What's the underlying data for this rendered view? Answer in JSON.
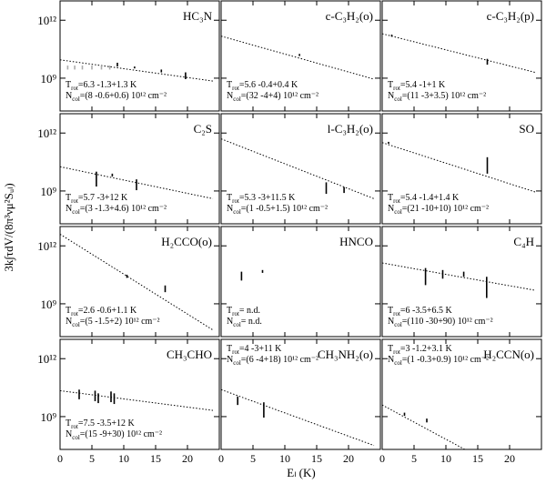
{
  "ylabel": "3k∫τdV/(8π³νμ²Sᵤₗ)",
  "xlabel": "Eₗ (K)",
  "chart_data": [
    {
      "type": "rotation",
      "title": "HC₃N",
      "xlim": [
        0,
        25
      ],
      "ylim": [
        20000000.0,
        10000000000000.0
      ],
      "log_y": true,
      "xticks": [
        0,
        5,
        10,
        15,
        20
      ],
      "yticks": [
        {
          "value": 1000000000.0,
          "label": "10⁹"
        },
        {
          "value": 1000000000000.0,
          "label": "10¹²"
        }
      ],
      "trot": {
        "sym": "T",
        "sub": "rot",
        "text": "=6.3 -1.3+1.3 K"
      },
      "ncol": {
        "sym": "N",
        "sub": "col",
        "text": "=(8 -0.6+0.6) 10¹² cm⁻²"
      },
      "fit": {
        "x": [
          0,
          24
        ],
        "y": [
          8900000000.0,
          710000000.0
        ]
      },
      "bars": {
        "color": "#000000",
        "x": [
          9,
          11.7,
          15.9,
          19.7
        ],
        "lo": [
          4000000000.0,
          3200000000.0,
          2000000000.0,
          890000000.0
        ],
        "hi": [
          6300000000.0,
          4000000000.0,
          2800000000.0,
          2000000000.0
        ]
      },
      "limits": {
        "color": "#aaaaaa",
        "x": [
          1.2,
          2.3,
          3.5,
          5,
          6.5,
          7.8
        ],
        "lo": [
          2800000000.0,
          2800000000.0,
          2800000000.0,
          2800000000.0,
          2800000000.0,
          2800000000.0
        ],
        "hi": [
          4500000000.0,
          4500000000.0,
          4500000000.0,
          4500000000.0,
          4500000000.0,
          4500000000.0
        ]
      }
    },
    {
      "type": "rotation",
      "title": "c-C₃H₂(o)",
      "xlim": [
        0,
        25
      ],
      "ylim": [
        20000000.0,
        10000000000000.0
      ],
      "log_y": true,
      "xticks": [
        0,
        5,
        10,
        15,
        20
      ],
      "yticks": [
        {
          "value": 1000000000.0,
          "label": "10⁹"
        },
        {
          "value": 1000000000000.0,
          "label": "10¹²"
        }
      ],
      "trot": {
        "sym": "T",
        "sub": "rot",
        "text": "=5.6 -0.4+0.4 K"
      },
      "ncol": {
        "sym": "N",
        "sub": "col",
        "text": "=(32 -4+4) 10¹² cm⁻²"
      },
      "fit": {
        "x": [
          0,
          24
        ],
        "y": [
          150000000000.0,
          890000000.0
        ]
      },
      "bars": {
        "color": "#000000",
        "x": [
          12.3
        ],
        "lo": [
          14000000000.0
        ],
        "hi": [
          18000000000.0
        ]
      }
    },
    {
      "type": "rotation",
      "title": "c-C₃H₂(p)",
      "xlim": [
        0,
        25
      ],
      "ylim": [
        20000000.0,
        10000000000000.0
      ],
      "log_y": true,
      "xticks": [
        0,
        5,
        10,
        15,
        20
      ],
      "yticks": [
        {
          "value": 1000000000.0,
          "label": "10⁹"
        },
        {
          "value": 1000000000000.0,
          "label": "10¹²"
        }
      ],
      "trot": {
        "sym": "T",
        "sub": "rot",
        "text": "=5.4 -1+1 K"
      },
      "ncol": {
        "sym": "N",
        "sub": "col",
        "text": "=(11 -3+3.5) 10¹² cm⁻²"
      },
      "fit": {
        "x": [
          0,
          24
        ],
        "y": [
          200000000000.0,
          2000000000.0
        ]
      },
      "bars": {
        "color": "#000000",
        "x": [
          1.5,
          16.5
        ],
        "lo": [
          140000000000.0,
          5000000000.0
        ],
        "hi": [
          180000000000.0,
          10000000000.0
        ]
      }
    },
    {
      "type": "rotation",
      "title": "C₂S",
      "xlim": [
        0,
        25
      ],
      "ylim": [
        20000000.0,
        10000000000000.0
      ],
      "log_y": true,
      "xticks": [
        0,
        5,
        10,
        15,
        20
      ],
      "yticks": [
        {
          "value": 1000000000.0,
          "label": "10⁹"
        },
        {
          "value": 1000000000000.0,
          "label": "10¹²"
        }
      ],
      "trot": {
        "sym": "T",
        "sub": "rot",
        "text": "=5.7 -3+12 K"
      },
      "ncol": {
        "sym": "N",
        "sub": "col",
        "text": "=(3 -1.3+4.6) 10¹² cm⁻²"
      },
      "fit": {
        "x": [
          0,
          24
        ],
        "y": [
          18000000000.0,
          400000000.0
        ]
      },
      "bars": {
        "color": "#000000",
        "x": [
          5.7,
          8.2,
          12
        ],
        "lo": [
          1700000000.0,
          5600000000.0,
          1100000000.0
        ],
        "hi": [
          10000000000.0,
          7900000000.0,
          4000000000.0
        ]
      }
    },
    {
      "type": "rotation",
      "title": "l-C₃H₂(o)",
      "xlim": [
        0,
        25
      ],
      "ylim": [
        20000000.0,
        10000000000000.0
      ],
      "log_y": true,
      "xticks": [
        0,
        5,
        10,
        15,
        20
      ],
      "yticks": [
        {
          "value": 1000000000.0,
          "label": "10⁹"
        },
        {
          "value": 1000000000000.0,
          "label": "10¹²"
        }
      ],
      "trot": {
        "sym": "T",
        "sub": "rot",
        "text": "=5.3 -3+11.5 K"
      },
      "ncol": {
        "sym": "N",
        "sub": "col",
        "text": "=(1 -0.5+1.5) 10¹² cm⁻²"
      },
      "fit": {
        "x": [
          0,
          24
        ],
        "y": [
          500000000000.0,
          400000000.0
        ]
      },
      "bars": {
        "color": "#000000",
        "x": [
          16.5,
          19.3
        ],
        "lo": [
          710000000.0,
          790000000.0
        ],
        "hi": [
          2800000000.0,
          1600000000.0
        ]
      }
    },
    {
      "type": "rotation",
      "title": "SO",
      "xlim": [
        0,
        25
      ],
      "ylim": [
        20000000.0,
        10000000000000.0
      ],
      "log_y": true,
      "xticks": [
        0,
        5,
        10,
        15,
        20
      ],
      "yticks": [
        {
          "value": 1000000000.0,
          "label": "10⁹"
        },
        {
          "value": 1000000000000.0,
          "label": "10¹²"
        }
      ],
      "trot": {
        "sym": "T",
        "sub": "rot",
        "text": "=5.4 -1.4+1.4 K"
      },
      "ncol": {
        "sym": "N",
        "sub": "col",
        "text": "=(21 -10+10) 10¹² cm⁻²"
      },
      "fit": {
        "x": [
          0,
          24
        ],
        "y": [
          320000000000.0,
          890000000.0
        ]
      },
      "bars": {
        "color": "#000000",
        "x": [
          1,
          16.5
        ],
        "lo": [
          280000000000.0,
          7900000000.0
        ],
        "hi": [
          350000000000.0,
          56000000000.0
        ]
      }
    },
    {
      "type": "rotation",
      "title": "H₂CCO(o)",
      "xlim": [
        0,
        25
      ],
      "ylim": [
        20000000.0,
        10000000000000.0
      ],
      "log_y": true,
      "xticks": [
        0,
        5,
        10,
        15,
        20
      ],
      "yticks": [
        {
          "value": 1000000000.0,
          "label": "10⁹"
        },
        {
          "value": 1000000000000.0,
          "label": "10¹²"
        }
      ],
      "trot": {
        "sym": "T",
        "sub": "rot",
        "text": "=2.6 -0.6+1.1 K"
      },
      "ncol": {
        "sym": "N",
        "sub": "col",
        "text": "=(5 -1.5+2) 10¹² cm⁻²"
      },
      "fit": {
        "x": [
          0,
          24
        ],
        "y": [
          4000000000000.0,
          44000000.0
        ]
      },
      "bars": {
        "color": "#000000",
        "x": [
          10.5,
          16.5
        ],
        "lo": [
          22000000000.0,
          4000000000.0
        ],
        "hi": [
          32000000000.0,
          8900000000.0
        ]
      }
    },
    {
      "type": "rotation",
      "title": "HNCO",
      "xlim": [
        0,
        25
      ],
      "ylim": [
        20000000.0,
        10000000000000.0
      ],
      "log_y": true,
      "xticks": [
        0,
        5,
        10,
        15,
        20
      ],
      "yticks": [
        {
          "value": 1000000000.0,
          "label": "10⁹"
        },
        {
          "value": 1000000000000.0,
          "label": "10¹²"
        }
      ],
      "trot": {
        "sym": "T",
        "sub": "rot",
        "text": "= n.d."
      },
      "ncol": {
        "sym": "N",
        "sub": "col",
        "text": "= n.d."
      },
      "bars": {
        "color": "#000000",
        "x": [
          3.2,
          6.5
        ],
        "lo": [
          16000000000.0,
          40000000000.0
        ],
        "hi": [
          46000000000.0,
          56000000000.0
        ]
      }
    },
    {
      "type": "rotation",
      "title": "C₄H",
      "xlim": [
        0,
        25
      ],
      "ylim": [
        20000000.0,
        10000000000000.0
      ],
      "log_y": true,
      "xticks": [
        0,
        5,
        10,
        15,
        20
      ],
      "yticks": [
        {
          "value": 1000000000.0,
          "label": "10⁹"
        },
        {
          "value": 1000000000000.0,
          "label": "10¹²"
        }
      ],
      "trot": {
        "sym": "T",
        "sub": "rot",
        "text": "=6 -3.5+6.5 K"
      },
      "ncol": {
        "sym": "N",
        "sub": "col",
        "text": "=(110 -30+90) 10¹² cm⁻²"
      },
      "fit": {
        "x": [
          0,
          24
        ],
        "y": [
          130000000000.0,
          5000000000.0
        ]
      },
      "bars": {
        "color": "#000000",
        "x": [
          6.8,
          9.5,
          12.8,
          16.4
        ],
        "lo": [
          9300000000.0,
          20000000000.0,
          25000000000.0,
          2000000000.0
        ],
        "hi": [
          71000000000.0,
          56000000000.0,
          46000000000.0,
          25000000000.0
        ]
      }
    },
    {
      "type": "rotation",
      "title": "CH₃CHO",
      "xlim": [
        0,
        25
      ],
      "ylim": [
        20000000.0,
        10000000000000.0
      ],
      "log_y": true,
      "xticks": [
        0,
        5,
        10,
        15,
        20
      ],
      "yticks": [
        {
          "value": 1000000000.0,
          "label": "10⁹"
        },
        {
          "value": 1000000000000.0,
          "label": "10¹²"
        }
      ],
      "trot": {
        "sym": "T",
        "sub": "rot",
        "text": "=7.5 -3.5+12 K"
      },
      "ncol": {
        "sym": "N",
        "sub": "col",
        "text": "=(15 -9+30) 10¹² cm⁻²"
      },
      "fit": {
        "x": [
          0,
          24
        ],
        "y": [
          22000000000.0,
          2100000000.0
        ]
      },
      "bars": {
        "color": "#000000",
        "x": [
          3,
          5.5,
          6,
          8,
          8.5
        ],
        "lo": [
          7900000000.0,
          6300000000.0,
          5000000000.0,
          5600000000.0,
          4500000000.0
        ],
        "hi": [
          25000000000.0,
          22000000000.0,
          16000000000.0,
          20000000000.0,
          16000000000.0
        ]
      }
    },
    {
      "type": "rotation",
      "title": "CH₃NH₂(o)",
      "xlim": [
        0,
        25
      ],
      "ylim": [
        20000000.0,
        10000000000000.0
      ],
      "log_y": true,
      "xticks": [
        0,
        5,
        10,
        15,
        20
      ],
      "yticks": [
        {
          "value": 1000000000.0,
          "label": "10⁹"
        },
        {
          "value": 1000000000000.0,
          "label": "10¹²"
        }
      ],
      "trot": {
        "sym": "T",
        "sub": "rot",
        "text": "=4 -3+11 K"
      },
      "ncol": {
        "sym": "N",
        "sub": "col",
        "text": "=(6 -4+18) 10¹² cm⁻²"
      },
      "fit": {
        "x": [
          0,
          24
        ],
        "y": [
          25000000000.0,
          32000000.0
        ]
      },
      "bars": {
        "color": "#000000",
        "x": [
          2.6,
          6.7
        ],
        "lo": [
          4000000000.0,
          890000000.0
        ],
        "hi": [
          11000000000.0,
          5500000000.0
        ]
      }
    },
    {
      "type": "rotation",
      "title": "H₂CCN(o)",
      "xlim": [
        0,
        25
      ],
      "ylim": [
        20000000.0,
        10000000000000.0
      ],
      "log_y": true,
      "xticks": [
        0,
        5,
        10,
        15,
        20
      ],
      "yticks": [
        {
          "value": 1000000000.0,
          "label": "10⁹"
        },
        {
          "value": 1000000000000.0,
          "label": "10¹²"
        }
      ],
      "trot": {
        "sym": "T",
        "sub": "rot",
        "text": "=3 -1.2+3.1 K"
      },
      "ncol": {
        "sym": "N",
        "sub": "col",
        "text": "=(1 -0.3+0.9) 10¹² cm⁻²"
      },
      "fit": {
        "x": [
          0,
          24
        ],
        "y": [
          4000000000.0,
          220000.0
        ]
      },
      "bars": {
        "color": "#000000",
        "x": [
          3.5,
          7
        ],
        "lo": [
          1100000000.0,
          500000000.0
        ],
        "hi": [
          1600000000.0,
          790000000.0
        ]
      }
    }
  ]
}
